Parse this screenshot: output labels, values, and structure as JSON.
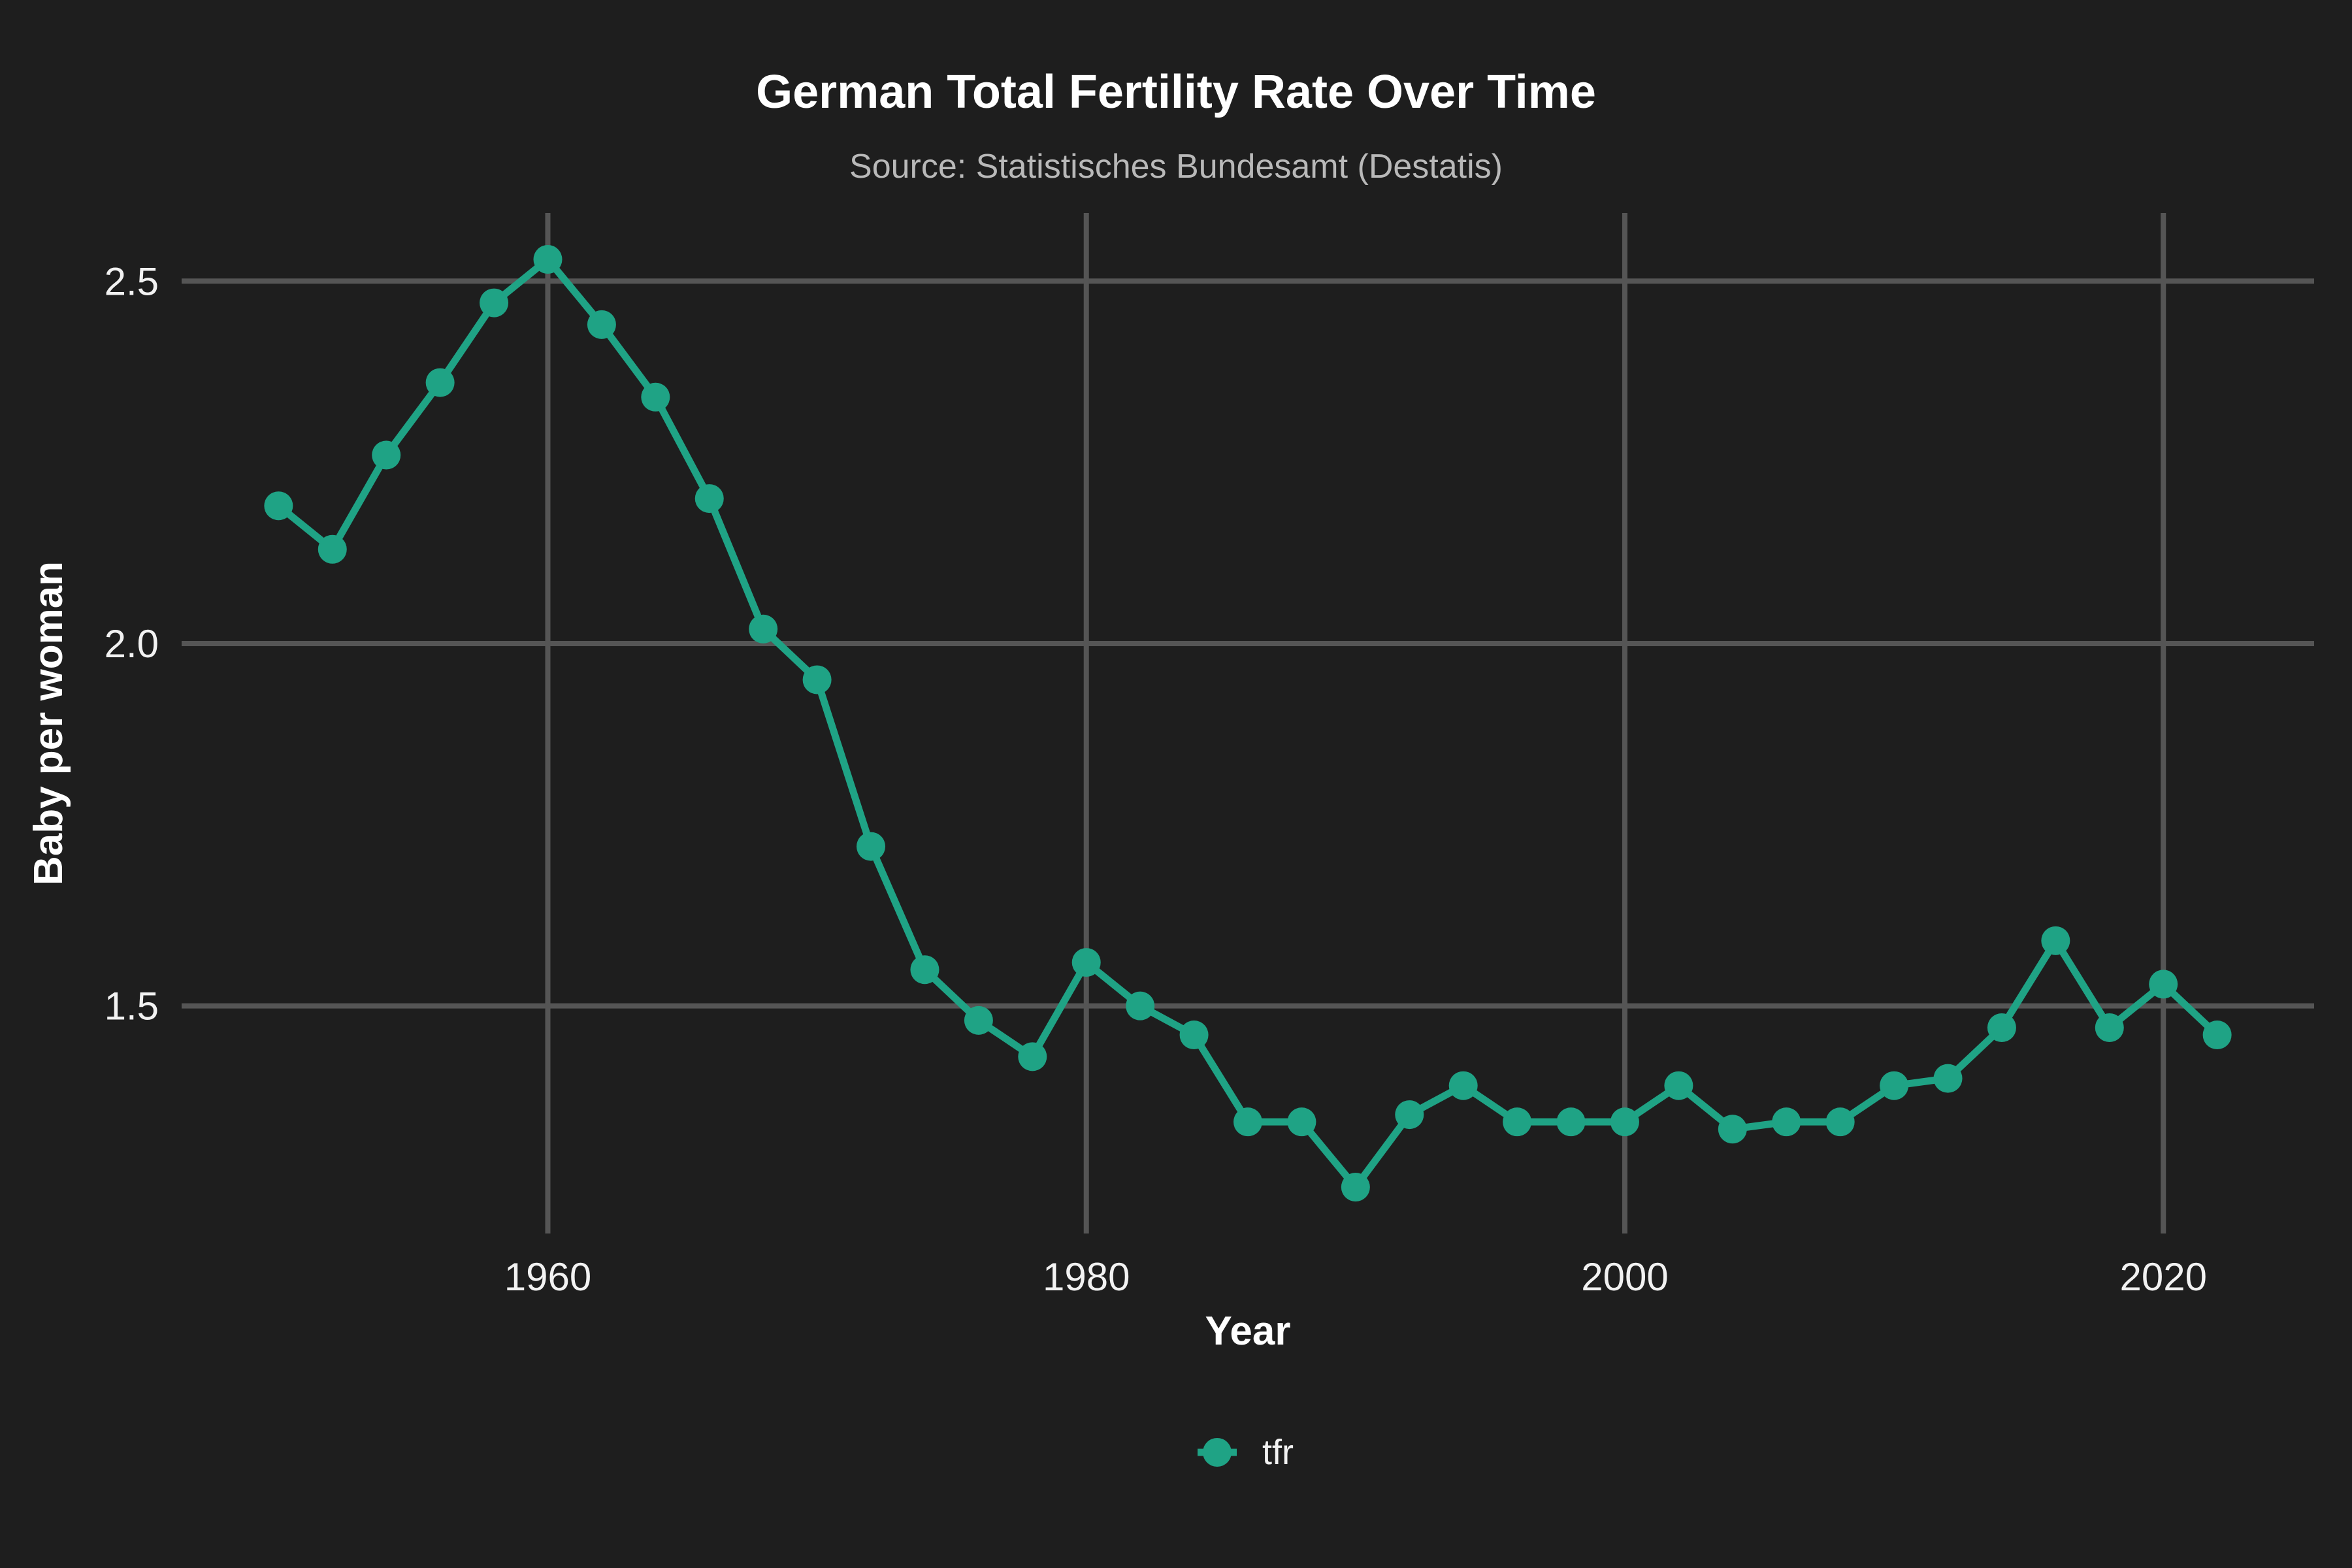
{
  "chart": {
    "title": "German Total Fertility Rate Over Time",
    "subtitle": "Source: Statistisches Bundesamt (Destatis)",
    "xlabel": "Year",
    "ylabel": "Baby per woman",
    "legend": {
      "label": "tfr"
    },
    "colors": {
      "background": "#1e1e1e",
      "grid": "#555555",
      "series": "#1fa385",
      "title": "#ffffff",
      "subtitle": "#b9b9b9",
      "tick": "#f2f2f2",
      "axis_title": "#ffffff",
      "legend_text": "#f2f2f2"
    }
  },
  "chart_data": {
    "type": "line",
    "series": [
      {
        "name": "tfr",
        "x": [
          1950,
          1952,
          1954,
          1956,
          1958,
          1960,
          1962,
          1964,
          1966,
          1968,
          1970,
          1972,
          1974,
          1976,
          1978,
          1980,
          1982,
          1984,
          1986,
          1988,
          1990,
          1992,
          1994,
          1996,
          1998,
          2000,
          2002,
          2004,
          2006,
          2008,
          2010,
          2012,
          2014,
          2016,
          2018,
          2020,
          2022
        ],
        "values": [
          2.19,
          2.13,
          2.26,
          2.36,
          2.47,
          2.53,
          2.44,
          2.34,
          2.2,
          2.02,
          1.95,
          1.72,
          1.55,
          1.48,
          1.43,
          1.56,
          1.5,
          1.46,
          1.34,
          1.34,
          1.25,
          1.35,
          1.39,
          1.34,
          1.34,
          1.34,
          1.39,
          1.33,
          1.34,
          1.34,
          1.39,
          1.4,
          1.47,
          1.59,
          1.47,
          1.53,
          1.46
        ]
      }
    ],
    "title": "German Total Fertility Rate Over Time",
    "subtitle": "Source: Statistisches Bundesamt (Destatis)",
    "xlabel": "Year",
    "ylabel": "Baby per woman",
    "x_ticks": [
      1960,
      1980,
      2000,
      2020
    ],
    "x_tick_labels": [
      "1960",
      "1980",
      "2000",
      "2020"
    ],
    "y_ticks": [
      1.5,
      2.0,
      2.5
    ],
    "y_tick_labels": [
      "1.5",
      "2.0",
      "2.5"
    ],
    "xlim": [
      1946.4,
      2025.6
    ],
    "ylim": [
      1.186,
      2.594
    ],
    "grid": true,
    "legend_position": "bottom",
    "marker": "circle"
  }
}
